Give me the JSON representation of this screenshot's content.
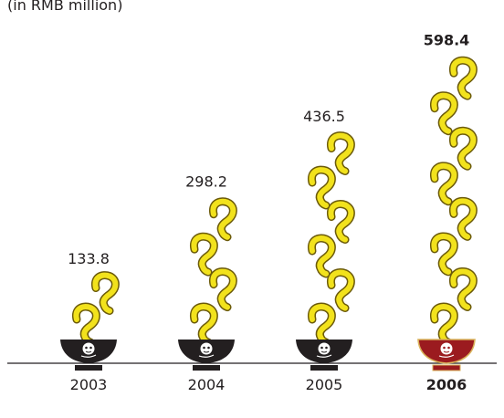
{
  "chart_data": {
    "type": "bar",
    "subtitle": "(in RMB million)",
    "categories": [
      "2003",
      "2004",
      "2005",
      "2006"
    ],
    "values": [
      133.8,
      298.2,
      436.5,
      598.4
    ],
    "highlight_index": 3,
    "ylim": [
      0,
      650
    ],
    "grid": false,
    "legend": "none"
  },
  "colors": {
    "noodle_fill": "#f2e21c",
    "noodle_stroke": "#6b5a0a",
    "bowl_default": "#231f20",
    "bowl_highlight": "#9b1b1f",
    "bowl_highlight_rim": "#d9b25a",
    "baseline": "#231f20",
    "text": "#231f20"
  },
  "icons": {
    "bar_icon": "noodle-squiggle-icon",
    "base_icon": "noodle-bowl-icon"
  }
}
